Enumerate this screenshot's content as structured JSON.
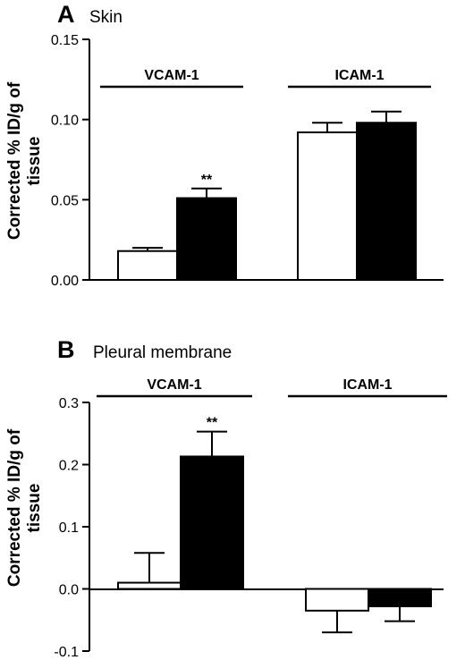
{
  "chart_data": [
    {
      "type": "bar",
      "panel_letter": "A",
      "title": "Skin",
      "ylabel": "Corrected % ID/g of tissue",
      "ylabel_lines": [
        "Corrected % ID/g of",
        "tissue"
      ],
      "ylim": [
        0,
        0.15
      ],
      "yticks": [
        0.0,
        0.05,
        0.1,
        0.15
      ],
      "ytick_labels": [
        "0.00",
        "0.05",
        "0.10",
        "0.15"
      ],
      "groups": [
        "VCAM-1",
        "ICAM-1"
      ],
      "series": [
        {
          "fill": "#ffffff",
          "values": [
            0.018,
            0.092
          ],
          "errors": [
            0.002,
            0.006
          ]
        },
        {
          "fill": "#000000",
          "values": [
            0.051,
            0.098
          ],
          "errors": [
            0.006,
            0.007
          ]
        }
      ],
      "annotations": [
        {
          "group": 0,
          "series": 1,
          "text": "**"
        }
      ],
      "grid": false
    },
    {
      "type": "bar",
      "panel_letter": "B",
      "title": "Pleural membrane",
      "ylabel": "Corrected % ID/g of tissue",
      "ylabel_lines": [
        "Corrected % ID/g of",
        "tissue"
      ],
      "ylim": [
        -0.1,
        0.3
      ],
      "yticks": [
        -0.1,
        0.0,
        0.1,
        0.2,
        0.3
      ],
      "ytick_labels": [
        "-0.1",
        "0.0",
        "0.1",
        "0.2",
        "0.3"
      ],
      "groups": [
        "VCAM-1",
        "ICAM-1"
      ],
      "series": [
        {
          "fill": "#ffffff",
          "values": [
            0.01,
            -0.035
          ],
          "errors": [
            0.048,
            0.035
          ]
        },
        {
          "fill": "#000000",
          "values": [
            0.213,
            -0.028
          ],
          "errors": [
            0.04,
            0.024
          ]
        }
      ],
      "annotations": [
        {
          "group": 0,
          "series": 1,
          "text": "**"
        }
      ],
      "grid": false
    }
  ]
}
